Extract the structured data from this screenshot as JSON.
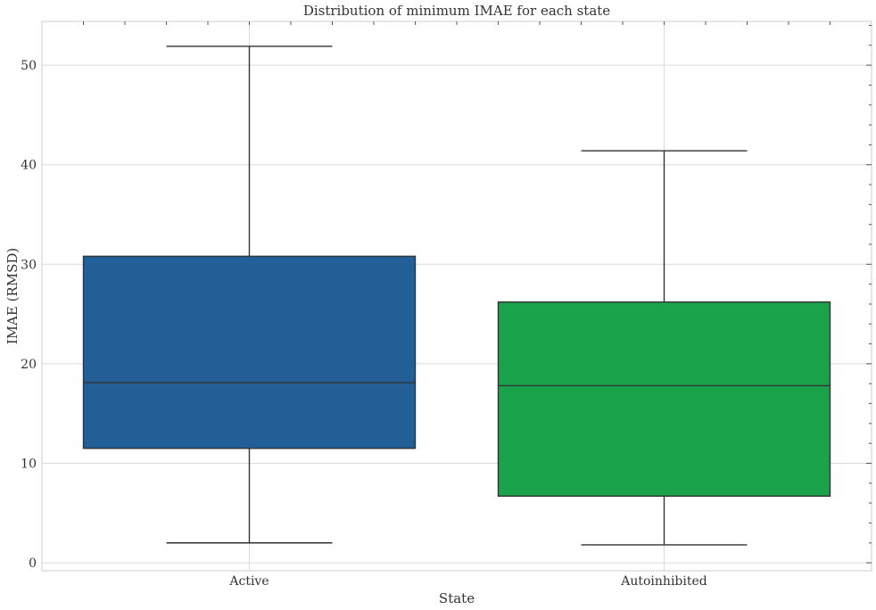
{
  "chart_data": {
    "type": "box",
    "title": "Distribution of minimum IMAE for each state",
    "xlabel": "State",
    "ylabel": "IMAE (RMSD)",
    "ylim": [
      -0.8,
      54.4
    ],
    "yticks": [
      0,
      10,
      20,
      30,
      40,
      50
    ],
    "grid": true,
    "categories": [
      "Active",
      "Autoinhibited"
    ],
    "boxes": [
      {
        "category": "Active",
        "whisker_low": 2.0,
        "q1": 11.5,
        "median": 18.1,
        "q3": 30.8,
        "whisker_high": 51.9,
        "color": "#215f96"
      },
      {
        "category": "Autoinhibited",
        "whisker_low": 1.8,
        "q1": 6.7,
        "median": 17.8,
        "q3": 26.2,
        "whisker_high": 41.4,
        "color": "#1ba34c"
      }
    ],
    "grid_color": "#d9d9d9",
    "edge_color": "#333333"
  }
}
